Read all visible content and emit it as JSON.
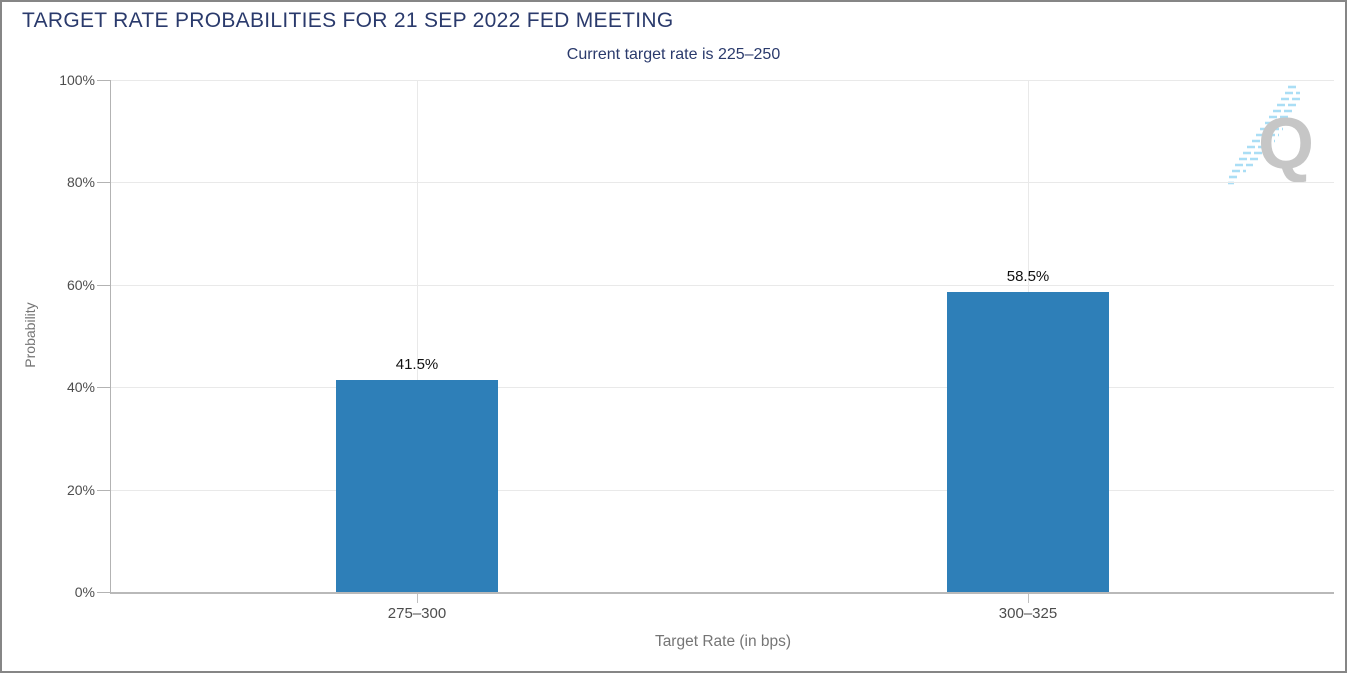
{
  "header": {
    "title": "TARGET RATE PROBABILITIES FOR 21 SEP 2022 FED MEETING",
    "subtitle": "Current target rate is 225–250"
  },
  "watermark_letter": "Q",
  "colors": {
    "bar": "#2e7fb8",
    "heading_navy": "#2a3a6c",
    "gridline": "#e9e9e9",
    "axis_line": "#b3b3b3",
    "tick_label": "#4d4d4d",
    "axis_title": "#757575",
    "value_label": "#111111",
    "watermark_gray": "#c6c6c6",
    "watermark_blue": "#aadef5"
  },
  "chart_data": {
    "type": "bar",
    "title": "TARGET RATE PROBABILITIES FOR 21 SEP 2022 FED MEETING",
    "subtitle": "Current target rate is 225–250",
    "categories": [
      "275–300",
      "300–325"
    ],
    "values": [
      41.5,
      58.5
    ],
    "value_labels": [
      "41.5%",
      "58.5%"
    ],
    "xlabel": "Target Rate (in bps)",
    "ylabel": "Probability",
    "ylim": [
      0,
      100
    ],
    "y_ticks": [
      0,
      20,
      40,
      60,
      80,
      100
    ],
    "y_tick_labels": [
      "0%",
      "20%",
      "40%",
      "60%",
      "80%",
      "100%"
    ],
    "grid": "horizontal lines at each y tick; one vertical line at each category center",
    "legend": "none"
  }
}
